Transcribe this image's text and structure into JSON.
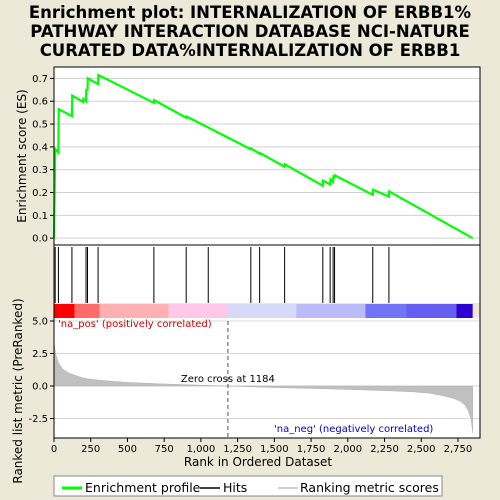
{
  "chart_data": [
    {
      "type": "line",
      "title_lines": [
        "Enrichment plot: INTERNALIZATION OF ERBB1%",
        "PATHWAY INTERACTION DATABASE NCI-NATURE",
        "CURATED DATA%INTERNALIZATION OF ERBB1"
      ],
      "ylabel": "Enrichment score (ES)",
      "xlim": [
        0,
        2900
      ],
      "ylim": [
        -0.03,
        0.75
      ],
      "yticks": [
        0.0,
        0.1,
        0.2,
        0.3,
        0.4,
        0.5,
        0.6,
        0.7
      ],
      "ytick_labels": [
        "0.0",
        "0.1",
        "0.2",
        "0.3",
        "0.4",
        "0.5",
        "0.6",
        "0.7"
      ],
      "grid": true,
      "series": [
        {
          "name": "Enrichment profile",
          "color": "#00ff00",
          "x": [
            0,
            8,
            10,
            30,
            32,
            122,
            124,
            198,
            200,
            218,
            220,
            228,
            230,
            300,
            302,
            680,
            682,
            900,
            902,
            1050,
            1340,
            1342,
            1400,
            1402,
            1570,
            1572,
            1830,
            1832,
            1880,
            1882,
            1900,
            1902,
            1910,
            1912,
            2170,
            2172,
            2280,
            2282,
            2850
          ],
          "y": [
            0.0,
            0.385,
            0.39,
            0.375,
            0.565,
            0.535,
            0.625,
            0.597,
            0.61,
            0.6,
            0.65,
            0.65,
            0.7,
            0.675,
            0.715,
            0.593,
            0.605,
            0.528,
            0.533,
            0.485,
            0.39,
            0.393,
            0.37,
            0.373,
            0.313,
            0.323,
            0.23,
            0.252,
            0.235,
            0.258,
            0.247,
            0.27,
            0.268,
            0.275,
            0.19,
            0.212,
            0.182,
            0.205,
            0.0
          ]
        }
      ]
    },
    {
      "type": "hits",
      "name": "Hits",
      "positions": [
        8,
        30,
        122,
        218,
        228,
        300,
        680,
        900,
        1050,
        1340,
        1400,
        1570,
        1830,
        1880,
        1900,
        1910,
        2170,
        2280
      ]
    },
    {
      "type": "heatmap",
      "description_colors": [
        "#ff0000",
        "#ff6b6b",
        "#ffb0b0",
        "#ffc8e8",
        "#d8d8f8",
        "#a8a8ff",
        "#6060f0",
        "#3000d0"
      ]
    },
    {
      "type": "area",
      "xlabel": "Rank in Ordered Dataset",
      "ylabel": "Ranked list metric (PreRanked)",
      "xlim": [
        0,
        2900
      ],
      "ylim": [
        -4.0,
        5.0
      ],
      "xticks": [
        0,
        250,
        500,
        750,
        1000,
        1250,
        1500,
        1750,
        2000,
        2250,
        2500,
        2750
      ],
      "xtick_labels": [
        "0",
        "250",
        "500",
        "750",
        "1,000",
        "1,250",
        "1,500",
        "1,750",
        "2,000",
        "2,250",
        "2,500",
        "2,750"
      ],
      "yticks": [
        -2.5,
        0.0,
        2.5,
        5.0
      ],
      "ytick_labels": [
        "-2.5",
        "0.0",
        "2.5",
        "5.0"
      ],
      "x": [
        0,
        2,
        10,
        30,
        60,
        100,
        150,
        200,
        300,
        400,
        500,
        700,
        900,
        1184,
        1500,
        1800,
        2100,
        2300,
        2450,
        2550,
        2650,
        2720,
        2770,
        2800,
        2820,
        2840,
        2850
      ],
      "y": [
        5.0,
        3.2,
        2.5,
        1.8,
        1.3,
        1.0,
        0.8,
        0.6,
        0.45,
        0.35,
        0.28,
        0.18,
        0.1,
        0.0,
        -0.12,
        -0.2,
        -0.3,
        -0.38,
        -0.45,
        -0.55,
        -0.75,
        -0.95,
        -1.2,
        -1.5,
        -1.9,
        -2.6,
        -3.6
      ],
      "zero_cross": 1184,
      "annotations": {
        "pos": "'na_pos' (positively correlated)",
        "neg": "'na_neg' (negatively correlated)",
        "zero": "Zero cross at 1184"
      },
      "pos_color": "#cc0000",
      "neg_color": "#0000cc"
    }
  ],
  "legend": {
    "items": [
      {
        "label": "Enrichment profile",
        "color": "#00ff00"
      },
      {
        "label": "Hits",
        "color": "#000000"
      },
      {
        "label": "Ranking metric scores",
        "color": "#c0c0c0"
      }
    ]
  }
}
